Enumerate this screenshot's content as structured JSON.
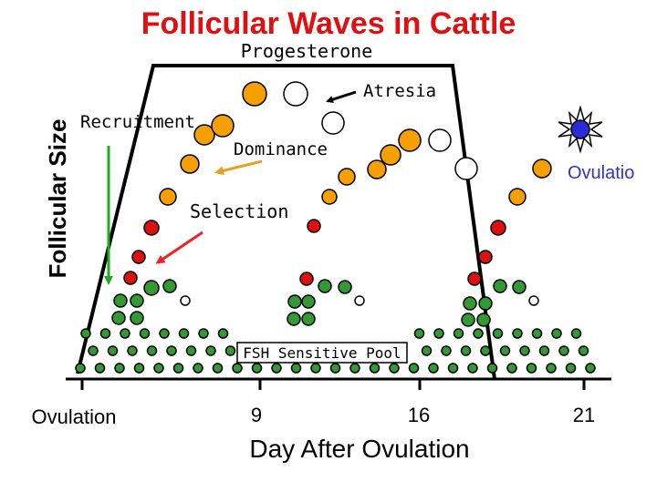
{
  "title": "Follicular Waves in Cattle",
  "y_axis_label": "Follicular Size",
  "x_axis_label": "Day After Ovulation",
  "x_ticks": [
    {
      "label": "Ovulation"
    },
    {
      "label": "9"
    },
    {
      "label": "16"
    },
    {
      "label": "21"
    }
  ],
  "annotations": {
    "progesterone": "Progesterone",
    "atresia": "Atresia",
    "recruitment": "Recruitment",
    "dominance": "Dominance",
    "selection": "Selection",
    "ovulation_right": "Ovulatio",
    "fsh_pool": "FSH Sensitive Pool"
  },
  "colors": {
    "dominant_follicle": "#f5a000",
    "selected_follicle": "#dd1111",
    "recruited_follicle": "#339933",
    "atretic_follicle": "#ffffff",
    "ovulating_follicle": "#2a2ad8",
    "ovulation_text": "#3333cc",
    "arrow_green": "#22aa22",
    "arrow_red": "#ee2222",
    "arrow_orange": "#e8a020"
  },
  "icons": {
    "ovulation": "starburst-icon"
  }
}
